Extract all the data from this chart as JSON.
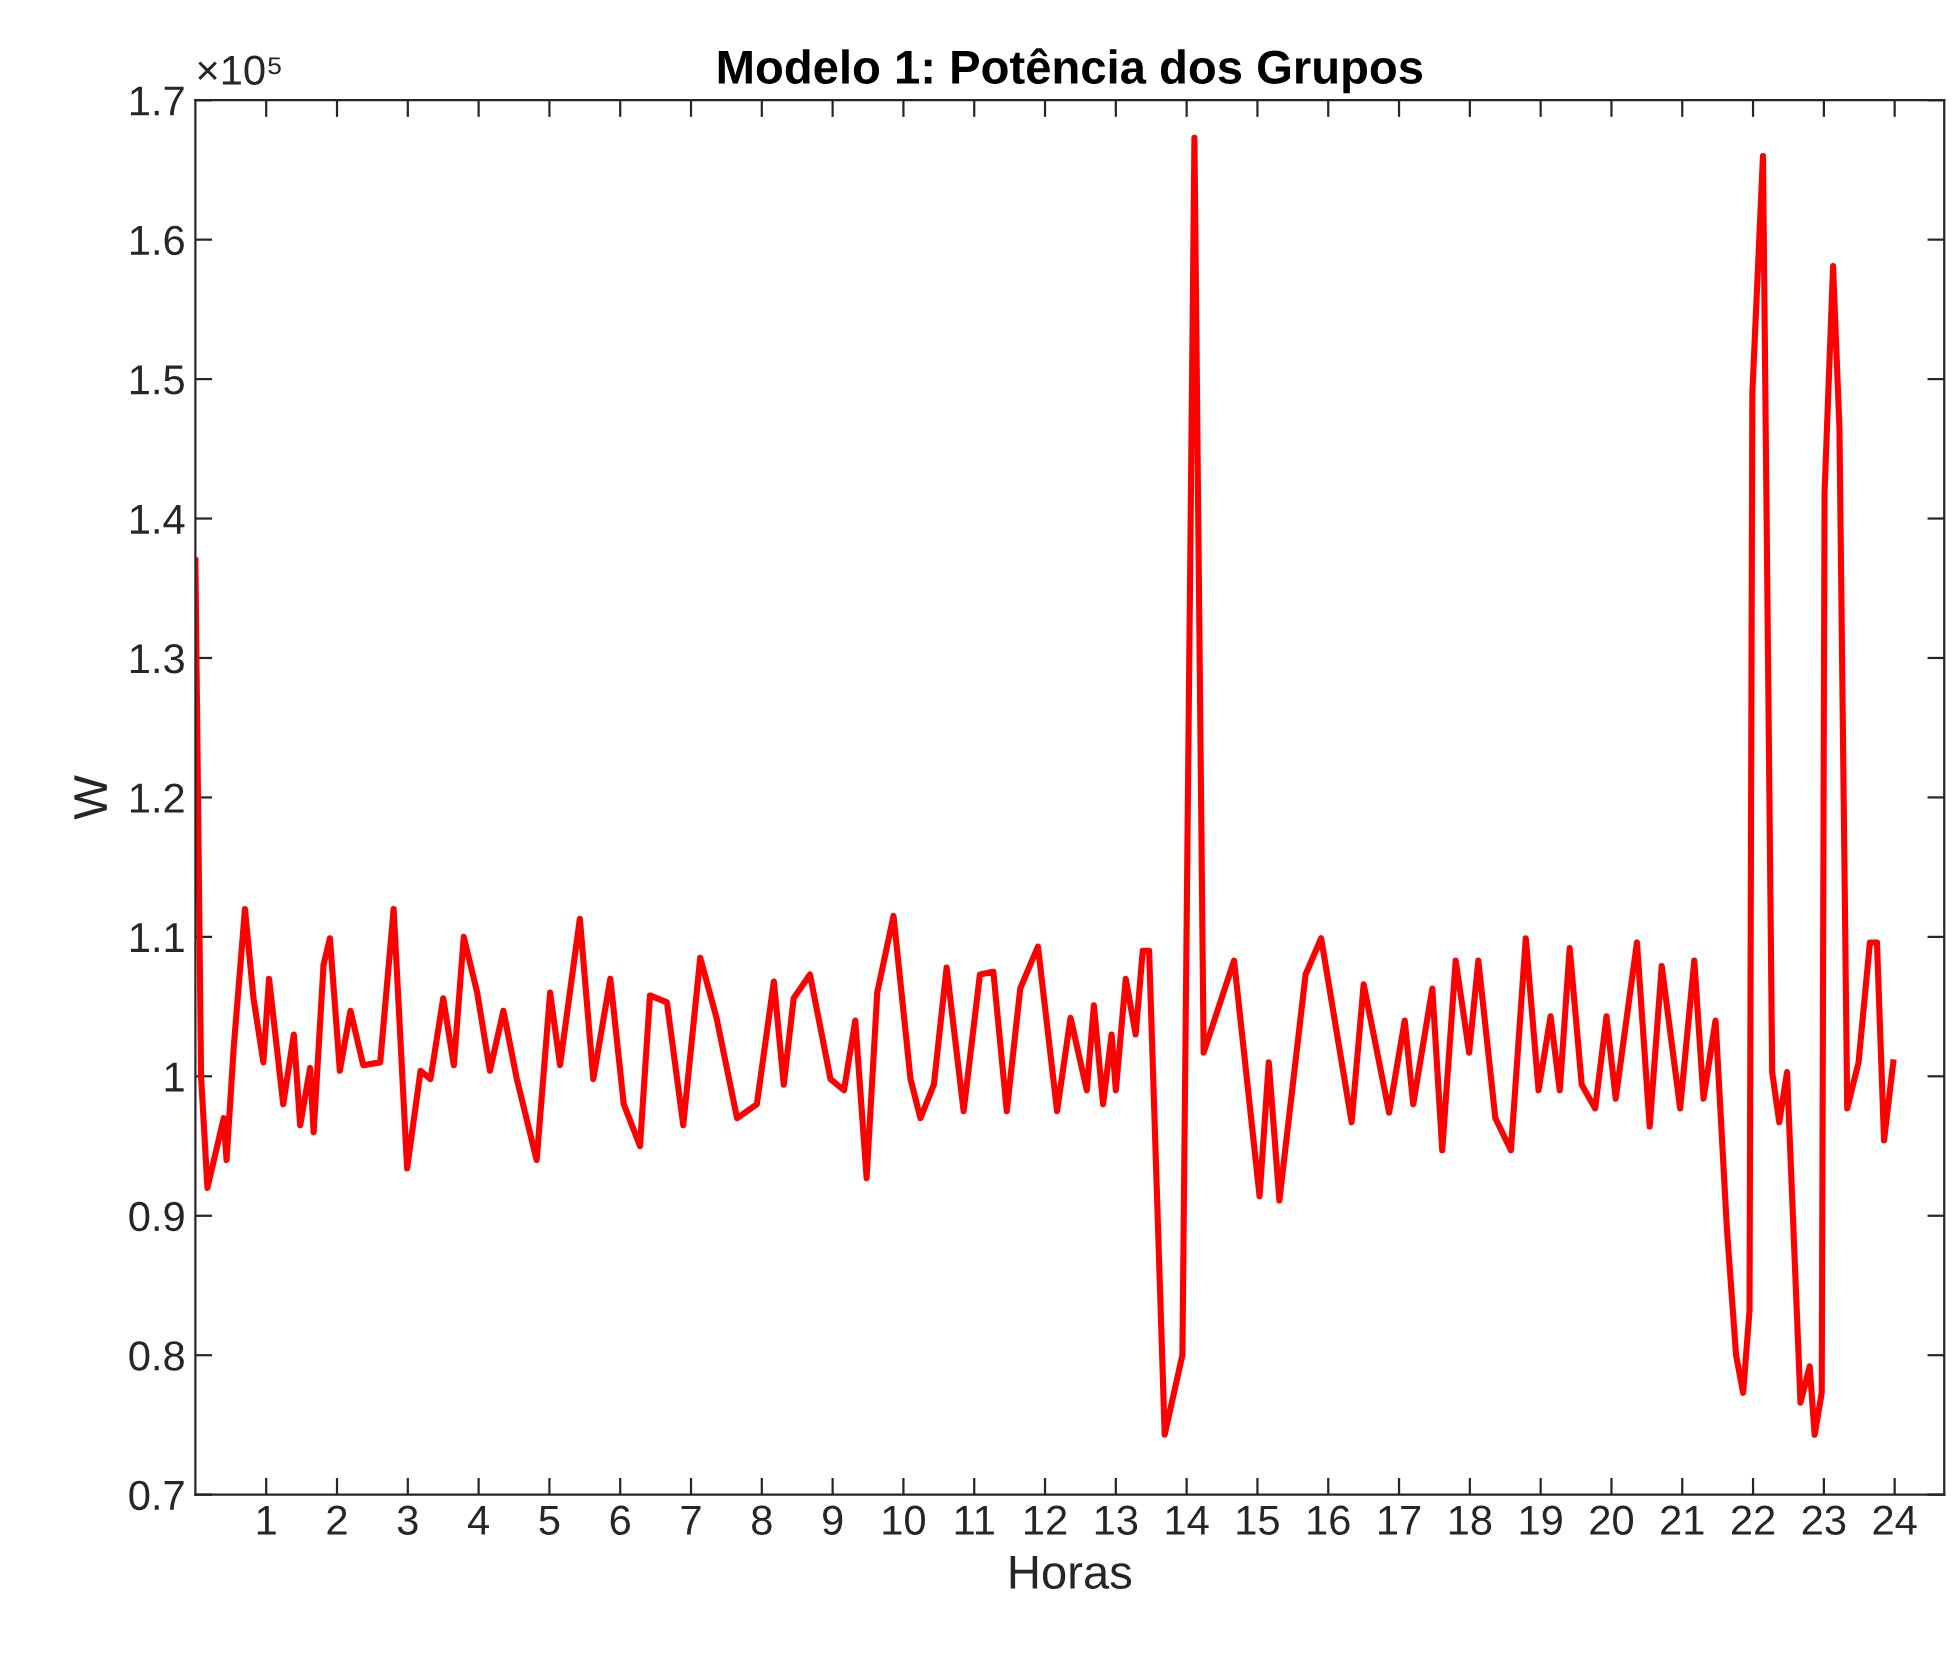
{
  "chart_data": {
    "type": "line",
    "title": "Modelo 1: Potência dos Grupos",
    "xlabel": "Horas",
    "ylabel": "W",
    "annotations": [
      "×10⁵"
    ],
    "xlim": [
      0,
      24.7
    ],
    "xticks": [
      1,
      2,
      3,
      4,
      5,
      6,
      7,
      8,
      9,
      10,
      11,
      12,
      13,
      14,
      15,
      16,
      17,
      18,
      19,
      20,
      21,
      22,
      23,
      24
    ],
    "ylim": [
      0.7,
      1.7
    ],
    "yticks": [
      0.7,
      0.8,
      0.9,
      1,
      1.1,
      1.2,
      1.3,
      1.4,
      1.5,
      1.6,
      1.7
    ],
    "grid": false,
    "marker": "none",
    "line_style": "solid",
    "series": [
      {
        "color": "#ff0000",
        "x": [
          0.0,
          0.08,
          0.17,
          0.4,
          0.44,
          0.54,
          0.7,
          0.82,
          0.96,
          1.04,
          1.24,
          1.39,
          1.48,
          1.62,
          1.67,
          1.81,
          1.9,
          2.04,
          2.19,
          2.37,
          2.61,
          2.8,
          2.99,
          3.18,
          3.32,
          3.5,
          3.65,
          3.79,
          3.98,
          4.16,
          4.35,
          4.54,
          4.82,
          5.01,
          5.15,
          5.43,
          5.62,
          5.86,
          6.05,
          6.28,
          6.42,
          6.66,
          6.89,
          7.13,
          7.36,
          7.65,
          7.93,
          8.17,
          8.31,
          8.45,
          8.68,
          8.97,
          9.16,
          9.32,
          9.48,
          9.63,
          9.86,
          10.1,
          10.24,
          10.43,
          10.61,
          10.85,
          11.08,
          11.27,
          11.46,
          11.65,
          11.9,
          12.17,
          12.36,
          12.59,
          12.69,
          12.82,
          12.94,
          13.0,
          13.14,
          13.28,
          13.38,
          13.47,
          13.69,
          13.94,
          14.11,
          14.24,
          14.67,
          15.03,
          15.16,
          15.31,
          15.68,
          15.9,
          16.33,
          16.5,
          16.86,
          17.08,
          17.2,
          17.47,
          17.61,
          17.8,
          17.99,
          18.12,
          18.36,
          18.58,
          18.79,
          18.97,
          19.14,
          19.27,
          19.41,
          19.58,
          19.77,
          19.93,
          20.06,
          20.36,
          20.54,
          20.71,
          20.97,
          21.17,
          21.3,
          21.47,
          21.63,
          21.76,
          21.86,
          21.95,
          21.99,
          22.14,
          22.27,
          22.37,
          22.48,
          22.67,
          22.8,
          22.87,
          22.97,
          23.01,
          23.13,
          23.22,
          23.33,
          23.49,
          23.65,
          23.75,
          23.85,
          23.98
        ],
        "values": [
          1.37,
          1.0,
          0.92,
          0.97,
          0.94,
          1.02,
          1.12,
          1.056,
          1.01,
          1.07,
          0.98,
          1.03,
          0.965,
          1.006,
          0.96,
          1.08,
          1.099,
          1.004,
          1.047,
          1.008,
          1.01,
          1.12,
          0.934,
          1.004,
          0.998,
          1.056,
          1.008,
          1.1,
          1.06,
          1.004,
          1.047,
          0.998,
          0.94,
          1.06,
          1.008,
          1.113,
          0.998,
          1.07,
          0.98,
          0.95,
          1.058,
          1.053,
          0.965,
          1.085,
          1.042,
          0.97,
          0.98,
          1.068,
          0.994,
          1.056,
          1.073,
          0.998,
          0.99,
          1.04,
          0.927,
          1.06,
          1.115,
          0.998,
          0.97,
          0.994,
          1.078,
          0.975,
          1.073,
          1.075,
          0.975,
          1.063,
          1.093,
          0.975,
          1.042,
          0.99,
          1.051,
          0.98,
          1.03,
          0.99,
          1.07,
          1.03,
          1.09,
          1.09,
          0.743,
          0.8,
          1.673,
          1.017,
          1.083,
          0.914,
          1.01,
          0.911,
          1.073,
          1.099,
          0.967,
          1.066,
          0.974,
          1.04,
          0.98,
          1.063,
          0.947,
          1.083,
          1.017,
          1.083,
          0.97,
          0.947,
          1.099,
          0.99,
          1.043,
          0.99,
          1.092,
          0.994,
          0.977,
          1.043,
          0.984,
          1.096,
          0.964,
          1.079,
          0.977,
          1.083,
          0.984,
          1.04,
          0.891,
          0.8,
          0.773,
          0.832,
          1.49,
          1.66,
          1.003,
          0.967,
          1.003,
          0.766,
          0.792,
          0.743,
          0.773,
          1.419,
          1.581,
          1.465,
          0.977,
          1.01,
          1.096,
          1.096,
          0.954,
          1.01
        ]
      }
    ]
  }
}
